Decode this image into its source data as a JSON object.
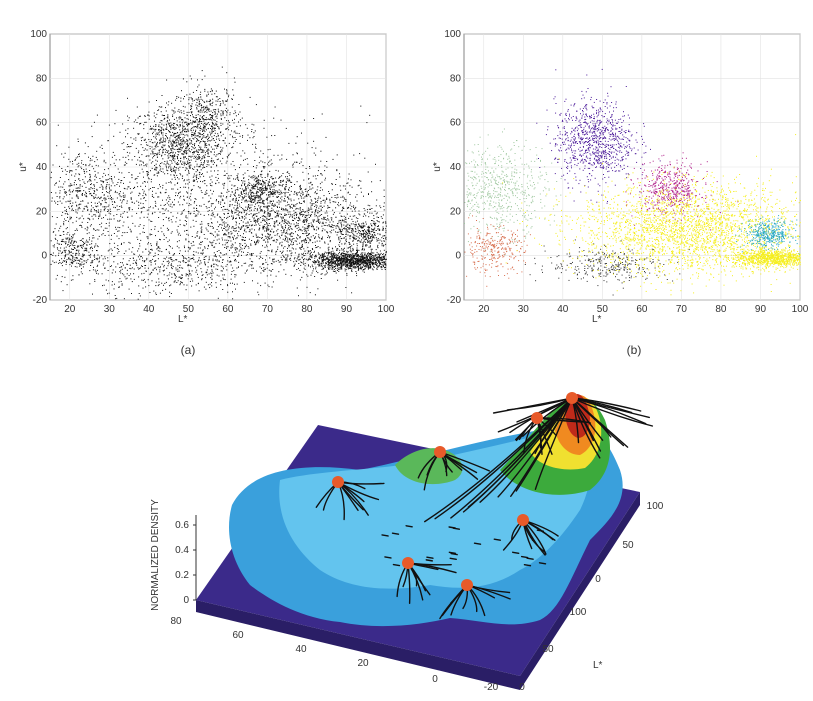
{
  "chart_data": [
    {
      "id": "a",
      "type": "scatter",
      "caption": "(a)",
      "xlabel": "L*",
      "ylabel": "u*",
      "xlim": [
        15,
        100
      ],
      "ylim": [
        -20,
        100
      ],
      "xticks": [
        20,
        30,
        40,
        50,
        60,
        70,
        80,
        90,
        100
      ],
      "yticks": [
        -20,
        0,
        20,
        40,
        60,
        80,
        100
      ],
      "grid": true,
      "point_color": "#111111",
      "clusters": [
        {
          "cx": 47,
          "cy": 50,
          "sx": 6,
          "sy": 9,
          "n": 900
        },
        {
          "cx": 55,
          "cy": 62,
          "sx": 4,
          "sy": 8,
          "n": 400
        },
        {
          "cx": 68,
          "cy": 30,
          "sx": 3.5,
          "sy": 4,
          "n": 300
        },
        {
          "cx": 25,
          "cy": 28,
          "sx": 6,
          "sy": 10,
          "n": 500
        },
        {
          "cx": 20,
          "cy": 2,
          "sx": 4,
          "sy": 5,
          "n": 300
        },
        {
          "cx": 45,
          "cy": -5,
          "sx": 10,
          "sy": 6,
          "n": 400
        },
        {
          "cx": 75,
          "cy": 15,
          "sx": 12,
          "sy": 10,
          "n": 1400
        },
        {
          "cx": 92,
          "cy": -2,
          "sx": 6,
          "sy": 2,
          "n": 1300
        },
        {
          "cx": 95,
          "cy": 10,
          "sx": 3,
          "sy": 4,
          "n": 300
        },
        {
          "cx": 55,
          "cy": 20,
          "sx": 20,
          "sy": 20,
          "n": 1400
        }
      ]
    },
    {
      "id": "b",
      "type": "scatter",
      "caption": "(b)",
      "xlabel": "L*",
      "ylabel": "u*",
      "xlim": [
        15,
        100
      ],
      "ylim": [
        -20,
        100
      ],
      "xticks": [
        20,
        30,
        40,
        50,
        60,
        70,
        80,
        90,
        100
      ],
      "yticks": [
        -20,
        0,
        20,
        40,
        60,
        80,
        100
      ],
      "grid": true,
      "clusters": [
        {
          "color": "#4b1a9a",
          "cx": 48,
          "cy": 52,
          "sx": 5,
          "sy": 9,
          "n": 900
        },
        {
          "color": "#b0208a",
          "cx": 67,
          "cy": 30,
          "sx": 4,
          "sy": 6,
          "n": 500
        },
        {
          "color": "#9fc79f",
          "cx": 24,
          "cy": 30,
          "sx": 6,
          "sy": 10,
          "n": 600
        },
        {
          "color": "#d87050",
          "cx": 22,
          "cy": 3,
          "sx": 4,
          "sy": 5,
          "n": 300
        },
        {
          "color": "#333333",
          "cx": 52,
          "cy": -4,
          "sx": 8,
          "sy": 4,
          "n": 300
        },
        {
          "color": "#f5ee1a",
          "cx": 72,
          "cy": 12,
          "sx": 14,
          "sy": 10,
          "n": 2600
        },
        {
          "color": "#f5ee1a",
          "cx": 93,
          "cy": -1,
          "sx": 5,
          "sy": 2,
          "n": 1000
        },
        {
          "color": "#2aa9c4",
          "cx": 92,
          "cy": 10,
          "sx": 3,
          "sy": 3,
          "n": 400
        }
      ]
    },
    {
      "id": "c",
      "type": "surface3d",
      "zlabel": "NORMALIZED DENSITY",
      "xlabel": "L*",
      "zticks": [
        "0",
        "0.2",
        "0.4",
        "0.6"
      ],
      "left_axis_ticks": [
        "80",
        "60",
        "40",
        "20",
        "0",
        "-20"
      ],
      "right_back_ticks": [
        "100",
        "50",
        "0"
      ],
      "right_front_ticks": [
        "100",
        "50",
        "0"
      ],
      "colors": {
        "base": "#3b2a8a",
        "low": "#3aa0dc",
        "mid": "#7ed0f0",
        "green": "#3caa3c",
        "yellow": "#f0e030",
        "orange": "#f08a20",
        "red": "#c02a1a",
        "mode": "#e85a2a",
        "path": "#111111"
      },
      "modes": 7
    }
  ]
}
